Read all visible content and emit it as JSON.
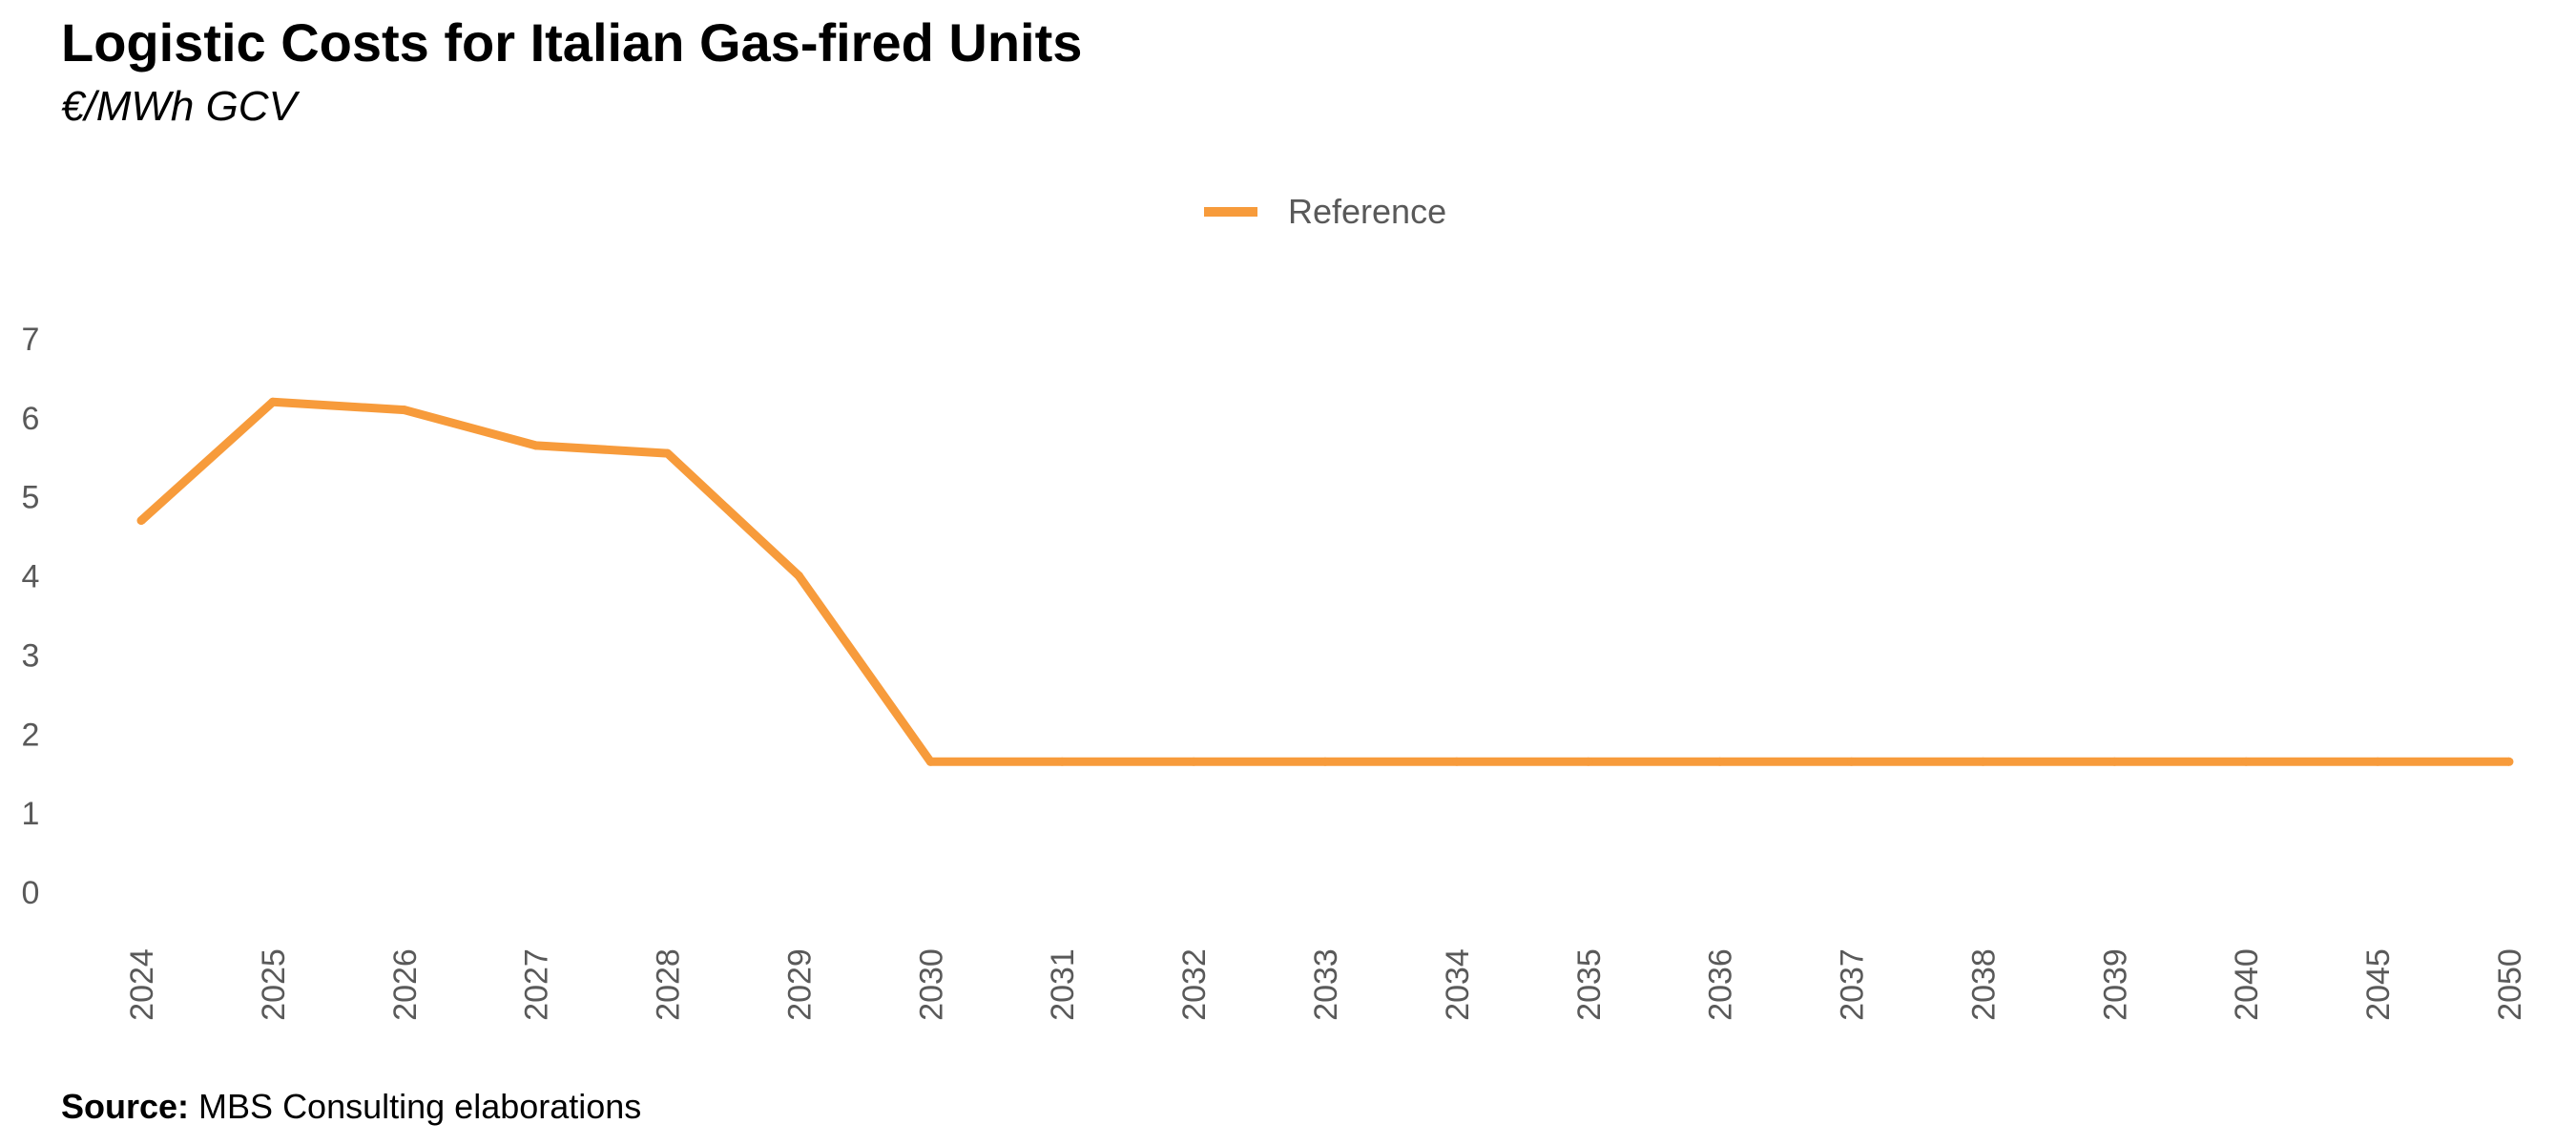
{
  "title": "Logistic Costs for Italian Gas-fired Units",
  "subtitle": "€/MWh GCV",
  "source": {
    "label": "Source:",
    "text": " MBS Consulting elaborations"
  },
  "chart_data": {
    "type": "line",
    "title": "Logistic Costs for Italian Gas-fired Units",
    "subtitle": "€/MWh GCV",
    "categories": [
      "2024",
      "2025",
      "2026",
      "2027",
      "2028",
      "2029",
      "2030",
      "2031",
      "2032",
      "2033",
      "2034",
      "2035",
      "2036",
      "2037",
      "2038",
      "2039",
      "2040",
      "2045",
      "2050"
    ],
    "series": [
      {
        "name": "Reference",
        "color": "#F79B3B",
        "values": [
          4.7,
          6.2,
          6.1,
          5.65,
          5.55,
          4.0,
          1.65,
          1.65,
          1.65,
          1.65,
          1.65,
          1.65,
          1.65,
          1.65,
          1.65,
          1.65,
          1.65,
          1.65,
          1.65
        ]
      }
    ],
    "ylim": [
      0,
      7
    ],
    "yticks": [
      0,
      1,
      2,
      3,
      4,
      5,
      6,
      7
    ],
    "xlabel": "",
    "ylabel": "",
    "grid": false,
    "legend": "top-center",
    "x_tick_rotation": "vertical"
  }
}
